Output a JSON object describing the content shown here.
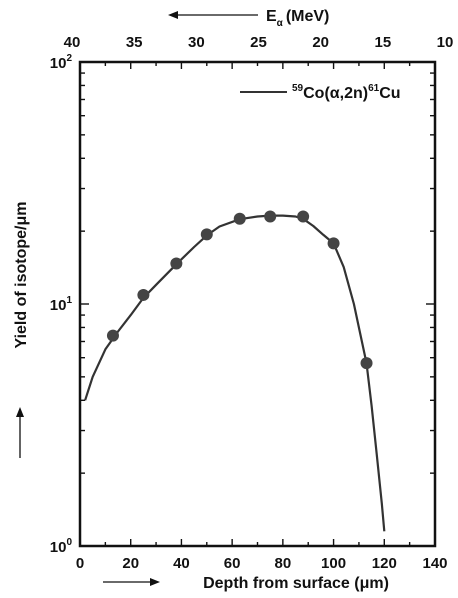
{
  "chart_data": {
    "type": "line",
    "legend": {
      "text": "59Co(α,2n)61Cu",
      "pre_sup": "59",
      "mid": "Co(α,2n)",
      "post_sup": "61",
      "tail": "Cu",
      "placement": "top-right"
    },
    "xlabel": "Depth from surface (μm)",
    "ylabel": "Yield of isotope/μm",
    "top_axis_label": "E",
    "top_axis_label_sub": "α",
    "top_axis_label_unit": "(MeV)",
    "x_ticks": [
      "0",
      "20",
      "40",
      "60",
      "80",
      "100",
      "120",
      "140"
    ],
    "y_ticks": [
      {
        "base": "10",
        "exp": "0"
      },
      {
        "base": "10",
        "exp": "1"
      },
      {
        "base": "10",
        "exp": "2"
      }
    ],
    "top_ticks": [
      "40",
      "35",
      "30",
      "25",
      "20",
      "15",
      "10"
    ],
    "xlim": [
      0,
      140
    ],
    "ylim": [
      1,
      100
    ],
    "y_scale": "log",
    "grid": false,
    "series": [
      {
        "points_x": [
          13,
          25,
          38,
          50,
          63,
          75,
          88,
          100,
          113
        ],
        "points_y": [
          7.4,
          10.9,
          14.7,
          19.4,
          22.5,
          23.0,
          23.0,
          17.8,
          5.7
        ],
        "curve_x": [
          2,
          5,
          10,
          15,
          20,
          25,
          30,
          38,
          45,
          50,
          55,
          63,
          70,
          75,
          80,
          85,
          88,
          92,
          96,
          100,
          104,
          108,
          110,
          113,
          115,
          117,
          119,
          120
        ],
        "curve_y": [
          4.0,
          5.0,
          6.5,
          7.7,
          9.0,
          10.6,
          12.0,
          14.6,
          17.2,
          19.2,
          20.9,
          22.4,
          23.0,
          23.2,
          23.2,
          23.0,
          22.5,
          21.0,
          19.3,
          17.8,
          14.2,
          10.0,
          8.0,
          5.7,
          3.8,
          2.4,
          1.5,
          1.15
        ],
        "color": "#333333"
      }
    ]
  }
}
